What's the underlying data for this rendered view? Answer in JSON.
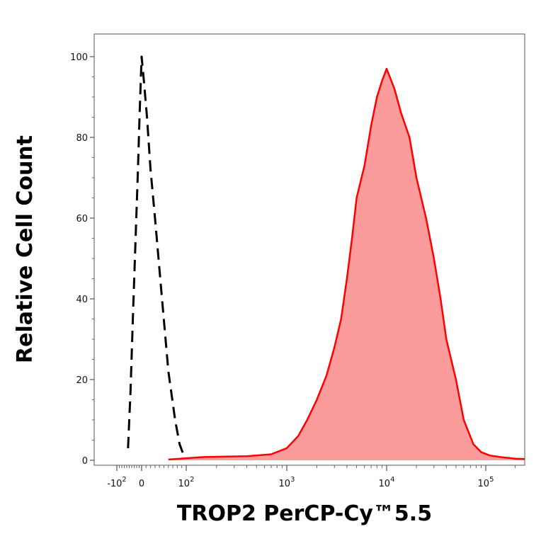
{
  "chart_data": {
    "type": "area",
    "xlabel": "TROP2 PerCP-Cy™5.5",
    "ylabel": "Relative Cell Count",
    "x_scale": "biexponential",
    "xlim": [
      -300,
      250000
    ],
    "ylim": [
      0,
      100
    ],
    "grid": false,
    "x_ticks": [
      {
        "value": -100,
        "base": "-10",
        "exp": "2"
      },
      {
        "value": 0,
        "base": "0",
        "exp": ""
      },
      {
        "value": 100,
        "base": "10",
        "exp": "2"
      },
      {
        "value": 1000,
        "base": "10",
        "exp": "3"
      },
      {
        "value": 10000,
        "base": "10",
        "exp": "4"
      },
      {
        "value": 100000,
        "base": "10",
        "exp": "5"
      }
    ],
    "y_ticks": [
      0,
      20,
      40,
      60,
      80,
      100
    ],
    "series": [
      {
        "style": "dashed",
        "color": "#000000",
        "fill": "none",
        "x": [
          -55,
          -45,
          -35,
          -25,
          -15,
          -8,
          0,
          5,
          12,
          20,
          30,
          45,
          60,
          75,
          85,
          95
        ],
        "y": [
          3,
          17,
          36,
          54,
          72,
          86,
          100,
          94,
          85,
          72,
          60,
          41,
          22,
          10,
          4,
          1
        ]
      },
      {
        "style": "solid",
        "color": "#ff0000",
        "fill": "#fc9b9b",
        "x": [
          60,
          150,
          400,
          700,
          1000,
          1300,
          1600,
          2000,
          2500,
          3000,
          3500,
          4000,
          4500,
          5000,
          6000,
          7000,
          8000,
          9000,
          10000,
          12000,
          14000,
          17000,
          20000,
          25000,
          30000,
          35000,
          40000,
          50000,
          60000,
          75000,
          90000,
          110000,
          140000,
          200000,
          250000
        ],
        "y": [
          0.2,
          0.8,
          1,
          1.5,
          3,
          6,
          10,
          15,
          21,
          28,
          35,
          45,
          55,
          65,
          73,
          83,
          90,
          94,
          97,
          92,
          86,
          80,
          70,
          60,
          50,
          40,
          30,
          20,
          10,
          4,
          2,
          1.2,
          0.8,
          0.4,
          0.3
        ]
      }
    ]
  }
}
